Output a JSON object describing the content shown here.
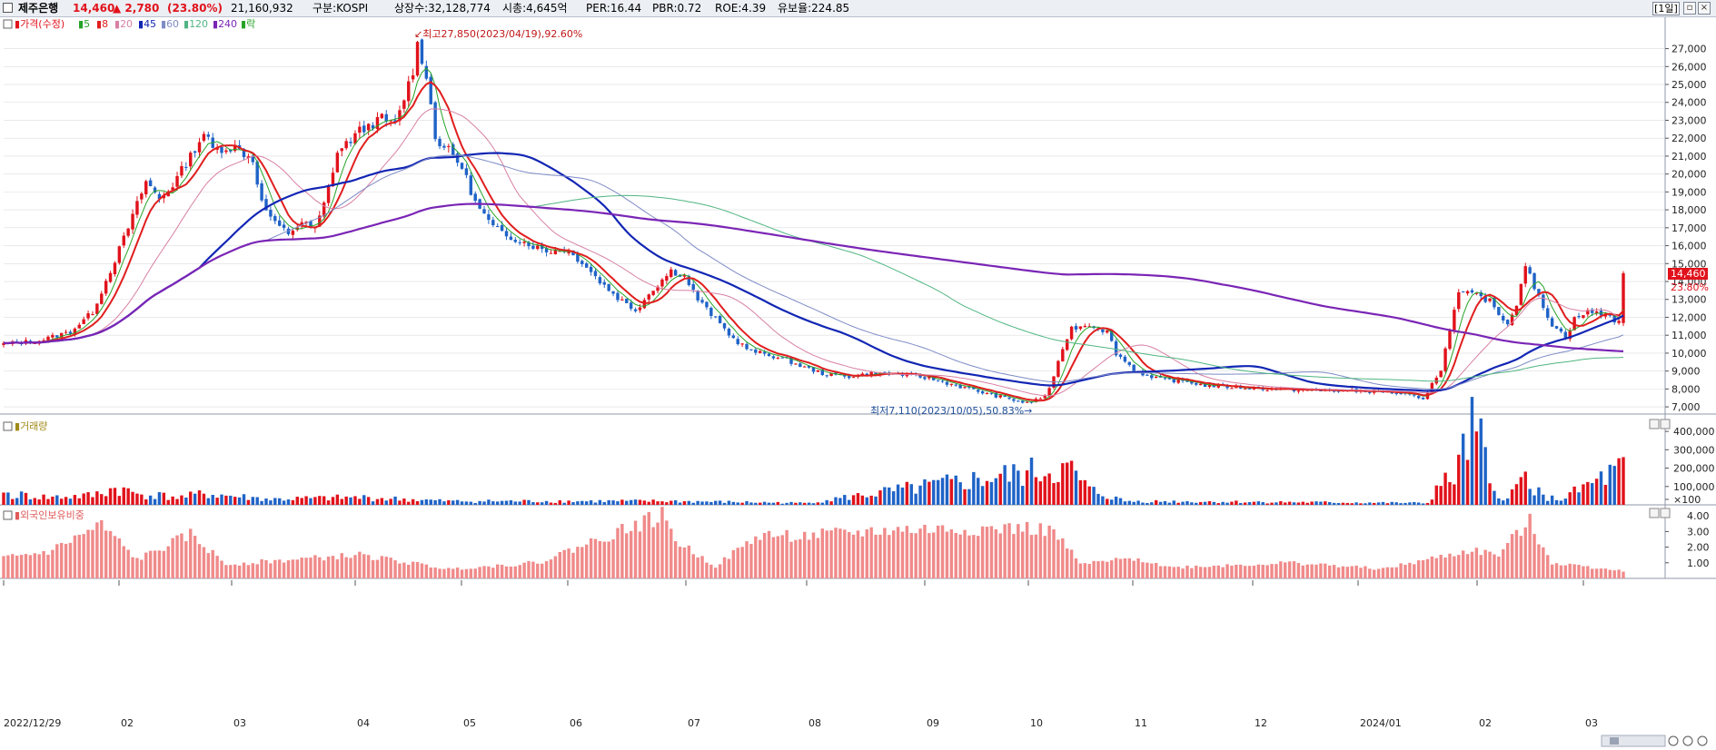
{
  "header": {
    "name": "제주은행",
    "price": "14,460",
    "change": "▲ 2,780",
    "change_pct": "(23.80%)",
    "volume": "21,160,932",
    "market": "구분:KOSPI",
    "shares": "상장수:32,128,774",
    "mcap": "시총:4,645억",
    "per": "PER:16.44",
    "pbr": "PBR:0.72",
    "roe": "ROE:4.39",
    "reserve": "유보율:224.85",
    "period": "[1일]"
  },
  "legend": {
    "price": "가격(수정)",
    "ma": [
      "5",
      "8",
      "20",
      "45",
      "60",
      "120",
      "240"
    ],
    "rak": "락"
  },
  "annotations": {
    "high": "최고27,850(2023/04/19),92.60%",
    "low": "최저7,110(2023/10/05),50.83%",
    "last_price": "14,460",
    "last_pct": "23.80%"
  },
  "panels": {
    "volume": "거래량",
    "foreign": "외국인보유비중"
  },
  "chart_data": {
    "type": "candlestick",
    "x_tick_labels": [
      "2022/12/29",
      "02",
      "03",
      "04",
      "05",
      "06",
      "07",
      "08",
      "09",
      "10",
      "11",
      "12",
      "2024/01",
      "02",
      "03"
    ],
    "price_axis": [
      "27,000",
      "26,000",
      "25,000",
      "24,000",
      "23,000",
      "22,000",
      "21,000",
      "20,000",
      "19,000",
      "18,000",
      "17,000",
      "16,000",
      "15,000",
      "14,000",
      "13,000",
      "12,000",
      "11,000",
      "10,000",
      "9,000",
      "8,000",
      "7,000"
    ],
    "price_ylim": [
      6600,
      28600
    ],
    "volume_axis": [
      "400,000",
      "300,000",
      "200,000",
      "100,000",
      "×100"
    ],
    "volume_ylim": [
      0,
      450000
    ],
    "foreign_axis": [
      "4.00",
      "3.00",
      "2.00",
      "1.00"
    ],
    "foreign_ylim": [
      0,
      4.3
    ],
    "price_keypoints": [
      [
        0,
        10500
      ],
      [
        8,
        10700
      ],
      [
        15,
        11200
      ],
      [
        20,
        12300
      ],
      [
        25,
        15200
      ],
      [
        28,
        17000
      ],
      [
        32,
        19600
      ],
      [
        35,
        18600
      ],
      [
        38,
        19400
      ],
      [
        42,
        21000
      ],
      [
        45,
        22300
      ],
      [
        47,
        21400
      ],
      [
        52,
        21500
      ],
      [
        56,
        20800
      ],
      [
        58,
        18400
      ],
      [
        61,
        17200
      ],
      [
        64,
        16700
      ],
      [
        67,
        17300
      ],
      [
        70,
        16900
      ],
      [
        72,
        18300
      ],
      [
        75,
        21200
      ],
      [
        80,
        22400
      ],
      [
        85,
        23100
      ],
      [
        88,
        22700
      ],
      [
        92,
        25800
      ],
      [
        93,
        27200
      ],
      [
        95,
        25600
      ],
      [
        97,
        22000
      ],
      [
        100,
        21300
      ],
      [
        103,
        20400
      ],
      [
        106,
        18400
      ],
      [
        110,
        17000
      ],
      [
        114,
        16500
      ],
      [
        118,
        16100
      ],
      [
        122,
        15700
      ],
      [
        126,
        15800
      ],
      [
        130,
        15100
      ],
      [
        134,
        14000
      ],
      [
        138,
        13100
      ],
      [
        142,
        12400
      ],
      [
        146,
        13600
      ],
      [
        150,
        14600
      ],
      [
        153,
        14300
      ],
      [
        156,
        13000
      ],
      [
        160,
        11900
      ],
      [
        164,
        10800
      ],
      [
        168,
        10100
      ],
      [
        172,
        9900
      ],
      [
        176,
        9600
      ],
      [
        180,
        9200
      ],
      [
        185,
        8800
      ],
      [
        190,
        8700
      ],
      [
        196,
        8900
      ],
      [
        202,
        8800
      ],
      [
        208,
        8600
      ],
      [
        214,
        8200
      ],
      [
        220,
        7800
      ],
      [
        225,
        7500
      ],
      [
        230,
        7200
      ],
      [
        234,
        7600
      ],
      [
        236,
        8600
      ],
      [
        238,
        10300
      ],
      [
        240,
        11400
      ],
      [
        244,
        11600
      ],
      [
        248,
        11200
      ],
      [
        250,
        10000
      ],
      [
        254,
        9100
      ],
      [
        258,
        8600
      ],
      [
        262,
        8500
      ],
      [
        266,
        8400
      ],
      [
        270,
        8200
      ],
      [
        280,
        8050
      ],
      [
        290,
        7950
      ],
      [
        300,
        7900
      ],
      [
        310,
        7850
      ],
      [
        316,
        7650
      ],
      [
        319,
        7350
      ],
      [
        321,
        8400
      ],
      [
        323,
        9000
      ],
      [
        325,
        11400
      ],
      [
        327,
        13300
      ],
      [
        330,
        13300
      ],
      [
        334,
        12900
      ],
      [
        338,
        11600
      ],
      [
        340,
        12800
      ],
      [
        342,
        15000
      ],
      [
        344,
        13600
      ],
      [
        346,
        12600
      ],
      [
        348,
        11600
      ],
      [
        351,
        10900
      ],
      [
        353,
        11900
      ],
      [
        356,
        12300
      ],
      [
        360,
        12200
      ],
      [
        363,
        11680
      ],
      [
        364,
        14460
      ]
    ],
    "volume_keypoints": [
      [
        0,
        60000
      ],
      [
        10,
        40000
      ],
      [
        20,
        50000
      ],
      [
        25,
        90000
      ],
      [
        30,
        60000
      ],
      [
        40,
        40000
      ],
      [
        45,
        60000
      ],
      [
        60,
        30000
      ],
      [
        80,
        40000
      ],
      [
        100,
        20000
      ],
      [
        150,
        20000
      ],
      [
        180,
        10000
      ],
      [
        236,
        190000
      ],
      [
        240,
        180000
      ],
      [
        244,
        80000
      ],
      [
        252,
        20000
      ],
      [
        320,
        10000
      ],
      [
        322,
        90000
      ],
      [
        326,
        150000
      ],
      [
        330,
        400000
      ],
      [
        332,
        350000
      ],
      [
        334,
        90000
      ],
      [
        338,
        30000
      ],
      [
        342,
        160000
      ],
      [
        346,
        40000
      ],
      [
        350,
        30000
      ],
      [
        364,
        200000
      ]
    ],
    "foreign_keypoints": [
      [
        0,
        1.3
      ],
      [
        10,
        1.7
      ],
      [
        22,
        3.4
      ],
      [
        30,
        1.2
      ],
      [
        42,
        2.8
      ],
      [
        50,
        0.9
      ],
      [
        80,
        1.5
      ],
      [
        100,
        0.6
      ],
      [
        120,
        1.0
      ],
      [
        140,
        3.2
      ],
      [
        148,
        4.0
      ],
      [
        152,
        2.2
      ],
      [
        160,
        0.8
      ],
      [
        170,
        2.8
      ],
      [
        180,
        2.7
      ],
      [
        200,
        3.1
      ],
      [
        230,
        3.2
      ],
      [
        236,
        3.0
      ],
      [
        242,
        0.9
      ],
      [
        255,
        1.3
      ],
      [
        262,
        0.7
      ],
      [
        290,
        1.0
      ],
      [
        310,
        0.6
      ],
      [
        330,
        1.8
      ],
      [
        336,
        1.5
      ],
      [
        340,
        2.8
      ],
      [
        343,
        3.6
      ],
      [
        348,
        1.0
      ],
      [
        364,
        0.5
      ]
    ]
  },
  "colors": {
    "up": "#e1121b",
    "down": "#1f63c7",
    "ma5": "#27a327",
    "ma8": "#e01e1e",
    "ma20": "#d780a4",
    "ma45": "#1226b4",
    "ma60": "#7d8bc6",
    "ma120": "#4fb582",
    "ma240": "#7a25b5",
    "foreign": "#f08a8a",
    "grid": "#dddddd"
  }
}
